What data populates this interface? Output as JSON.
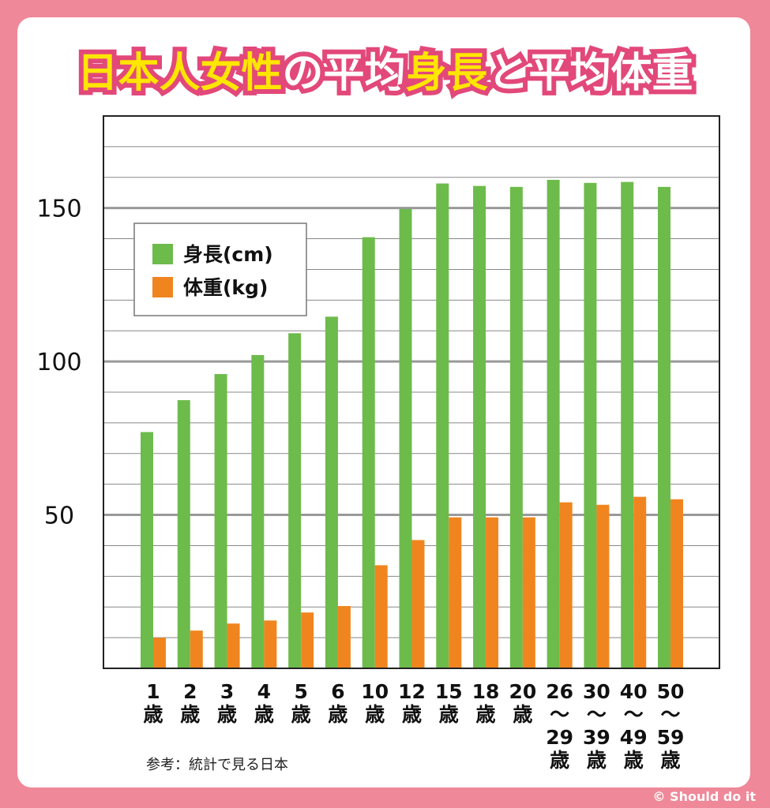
{
  "chart_data": {
    "type": "bar",
    "title_parts": [
      {
        "text": "日本人女性",
        "color": "#ffe600"
      },
      {
        "text": "の",
        "color": "#ffffff"
      },
      {
        "text": "平均",
        "color": "#ffffff"
      },
      {
        "text": "身長",
        "color": "#ffe600"
      },
      {
        "text": "と",
        "color": "#ffffff"
      },
      {
        "text": "平均体重",
        "color": "#ffffff"
      }
    ],
    "categories": [
      "1\n歳",
      "2\n歳",
      "3\n歳",
      "4\n歳",
      "5\n歳",
      "6\n歳",
      "10\n歳",
      "12\n歳",
      "15\n歳",
      "18\n歳",
      "20\n歳",
      "26\n〜\n29\n歳",
      "30\n〜\n39\n歳",
      "40\n〜\n49\n歳",
      "50\n〜\n59\n歳"
    ],
    "series": [
      {
        "name": "身長(cm)",
        "color": "#6dbb4b",
        "values": [
          77,
          87.4,
          95.9,
          102.1,
          109.2,
          114.6,
          140.5,
          149.7,
          158,
          157.2,
          156.9,
          159.2,
          158.2,
          158.5,
          156.9
        ]
      },
      {
        "name": "体重(kg)",
        "color": "#f0851f",
        "values": [
          10,
          12.3,
          14.6,
          15.6,
          18.2,
          20.3,
          33.6,
          41.8,
          49.2,
          49.2,
          49.2,
          54.1,
          53.3,
          55.9,
          55.1
        ]
      }
    ],
    "ylim": [
      0,
      180
    ],
    "yticks": [
      50,
      100,
      150
    ],
    "minor_yticks": [
      10,
      20,
      30,
      40,
      60,
      70,
      80,
      90,
      110,
      120,
      130,
      140,
      160,
      170
    ],
    "grid": true,
    "source": "参考：統計で見る日本",
    "credit": "© Should do it"
  }
}
